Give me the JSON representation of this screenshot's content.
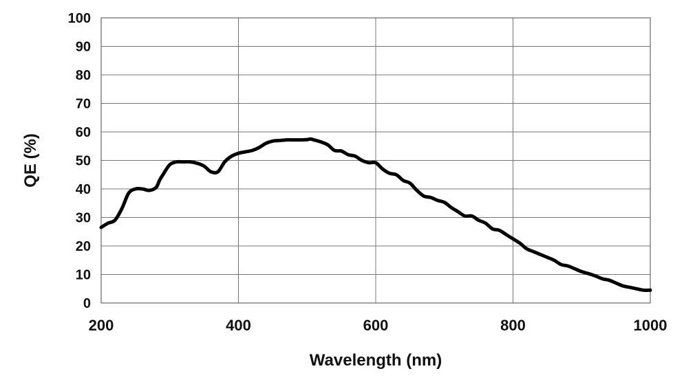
{
  "chart_data": {
    "type": "line",
    "title": "",
    "xlabel": "Wavelength (nm)",
    "ylabel": "QE (%)",
    "xlim": [
      200,
      1000
    ],
    "ylim": [
      0,
      100
    ],
    "xticks": [
      200,
      400,
      600,
      800,
      1000
    ],
    "yticks": [
      0,
      10,
      20,
      30,
      40,
      50,
      60,
      70,
      80,
      90,
      100
    ],
    "grid": true,
    "legend": "none",
    "line_color": "#000000",
    "series": [
      {
        "x": [
          200,
          210,
          220,
          230,
          240,
          250,
          260,
          270,
          280,
          285,
          290,
          300,
          310,
          320,
          330,
          340,
          350,
          360,
          370,
          380,
          390,
          400,
          410,
          420,
          430,
          440,
          450,
          460,
          470,
          480,
          490,
          500,
          505,
          510,
          520,
          530,
          540,
          550,
          560,
          570,
          580,
          590,
          600,
          610,
          620,
          630,
          640,
          650,
          660,
          670,
          680,
          690,
          700,
          710,
          720,
          730,
          740,
          750,
          760,
          770,
          780,
          790,
          800,
          810,
          820,
          830,
          840,
          850,
          860,
          870,
          880,
          890,
          900,
          910,
          920,
          930,
          940,
          950,
          960,
          970,
          980,
          990,
          1000
        ],
        "y": [
          26.5,
          28,
          29,
          33,
          38.5,
          40,
          40,
          39.5,
          40.5,
          43,
          45,
          48.5,
          49.5,
          49.5,
          49.5,
          49,
          48,
          46,
          46,
          49.5,
          51.5,
          52.5,
          53,
          53.5,
          54.5,
          56,
          56.8,
          57,
          57.2,
          57.2,
          57.2,
          57.3,
          57.5,
          57.2,
          56.5,
          55.5,
          53.5,
          53.3,
          52,
          51.5,
          50,
          49.2,
          49.2,
          47,
          45.5,
          45,
          43,
          42,
          39.5,
          37.5,
          37,
          36,
          35.3,
          33.5,
          32,
          30.5,
          30.5,
          29,
          28,
          26,
          25.5,
          24,
          22.5,
          21,
          19,
          18,
          17,
          16,
          15,
          13.5,
          13,
          12,
          11,
          10.3,
          9.5,
          8.5,
          8,
          7,
          6,
          5.5,
          5,
          4.5,
          4.5
        ]
      }
    ]
  }
}
